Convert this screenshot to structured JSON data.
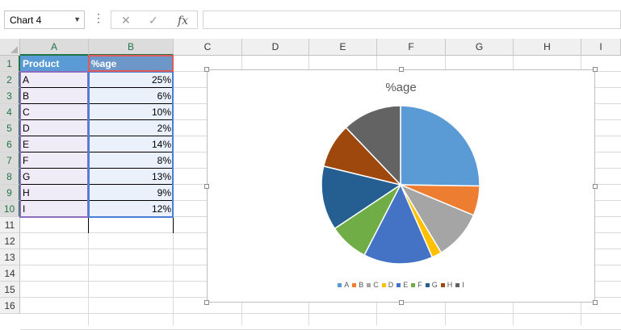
{
  "formula_bar": {
    "name_box": "Chart 4",
    "menu_dots": "⋮",
    "cancel_icon": "✕",
    "enter_icon": "✓",
    "function_label": "fx",
    "formula": ""
  },
  "columns": [
    "A",
    "B",
    "C",
    "D",
    "E",
    "F",
    "G",
    "H",
    "I"
  ],
  "rows": [
    "1",
    "2",
    "3",
    "4",
    "5",
    "6",
    "7",
    "8",
    "9",
    "10",
    "11",
    "12",
    "13",
    "14",
    "15",
    "16"
  ],
  "table": {
    "headers": [
      "Product",
      "%age"
    ],
    "rows": [
      {
        "product": "A",
        "pct": "25%"
      },
      {
        "product": "B",
        "pct": "6%"
      },
      {
        "product": "C",
        "pct": "10%"
      },
      {
        "product": "D",
        "pct": "2%"
      },
      {
        "product": "E",
        "pct": "14%"
      },
      {
        "product": "F",
        "pct": "8%"
      },
      {
        "product": "G",
        "pct": "13%"
      },
      {
        "product": "H",
        "pct": "9%"
      },
      {
        "product": "I",
        "pct": "12%"
      }
    ]
  },
  "colors": {
    "accent": "#217346",
    "header_fill": "#5b9bd5",
    "selection_range_a": "#8e6bbf",
    "selection_range_b": "#4a7fd6",
    "selection_header": "#e05a5a"
  },
  "chart_data": {
    "type": "pie",
    "title": "%age",
    "categories": [
      "A",
      "B",
      "C",
      "D",
      "E",
      "F",
      "G",
      "H",
      "I"
    ],
    "values": [
      25,
      6,
      10,
      2,
      14,
      8,
      13,
      9,
      12
    ],
    "colors": [
      "#5b9bd5",
      "#ed7d31",
      "#a5a5a5",
      "#ffc000",
      "#4472c4",
      "#70ad47",
      "#255e91",
      "#9e480e",
      "#636363"
    ],
    "legend_position": "bottom"
  }
}
